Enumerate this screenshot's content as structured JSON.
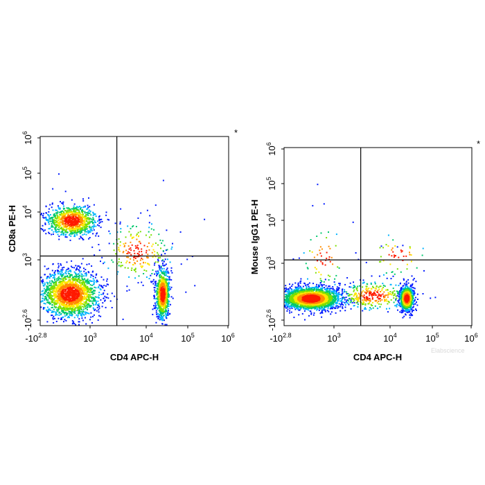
{
  "chart_data": [
    {
      "type": "scatter",
      "subtype": "flow-cytometry-density-dot-plot",
      "xlabel": "CD4 APC-H",
      "ylabel": "CD8a PE-H",
      "x_ticks": [
        {
          "base": "-10",
          "exp": "2.8",
          "value": -631
        },
        {
          "base": "10",
          "exp": "3",
          "value": 1000
        },
        {
          "base": "10",
          "exp": "4",
          "value": 10000
        },
        {
          "base": "10",
          "exp": "5",
          "value": 100000
        },
        {
          "base": "10",
          "exp": "6",
          "value": 1000000
        }
      ],
      "y_ticks": [
        {
          "base": "-10",
          "exp": "2.6",
          "value": -398
        },
        {
          "base": "10",
          "exp": "3",
          "value": 1000
        },
        {
          "base": "10",
          "exp": "4",
          "value": 10000
        },
        {
          "base": "10",
          "exp": "5",
          "value": 100000
        },
        {
          "base": "10",
          "exp": "6",
          "value": 1000000
        }
      ],
      "x_scale": "biexponential",
      "y_scale": "biexponential",
      "quadrant_gate": {
        "x": 3000,
        "y": 1200
      },
      "marker": "*",
      "populations": [
        {
          "x": 450,
          "y": 6500,
          "x_spread": 0.22,
          "y_spread": 0.16,
          "count": 1000
        },
        {
          "x": 400,
          "y": 200,
          "x_spread": 0.26,
          "y_spread": 0.24,
          "count": 1900
        },
        {
          "x": 25000,
          "y": 210,
          "x_spread": 0.06,
          "y_spread": 0.26,
          "count": 850
        },
        {
          "x": 7000,
          "y": 1500,
          "x_spread": 0.3,
          "y_spread": 0.3,
          "count": 220
        }
      ],
      "sparse_points": [
        [
          60,
          95000
        ],
        [
          1300,
          3500
        ],
        [
          26000,
          65000
        ],
        [
          8000,
          9500
        ],
        [
          3500,
          12000
        ],
        [
          12000,
          6000
        ],
        [
          17000,
          15000
        ],
        [
          2200,
          2200
        ],
        [
          42000,
          700
        ],
        [
          70000,
          900
        ],
        [
          260000,
          7000
        ],
        [
          90000,
          250
        ],
        [
          150000,
          400
        ],
        [
          1600,
          600
        ],
        [
          5000,
          300
        ]
      ]
    },
    {
      "type": "scatter",
      "subtype": "flow-cytometry-density-dot-plot",
      "xlabel": "CD4 APC-H",
      "ylabel": "Mouse IgG1 PE-H",
      "x_ticks": [
        {
          "base": "-10",
          "exp": "2.8",
          "value": -631
        },
        {
          "base": "10",
          "exp": "3",
          "value": 1000
        },
        {
          "base": "10",
          "exp": "4",
          "value": 10000
        },
        {
          "base": "10",
          "exp": "5",
          "value": 100000
        },
        {
          "base": "10",
          "exp": "6",
          "value": 1000000
        }
      ],
      "y_ticks": [
        {
          "base": "-10",
          "exp": "2.6",
          "value": -398
        },
        {
          "base": "10",
          "exp": "3",
          "value": 1000
        },
        {
          "base": "10",
          "exp": "4",
          "value": 10000
        },
        {
          "base": "10",
          "exp": "5",
          "value": 100000
        },
        {
          "base": "10",
          "exp": "6",
          "value": 1000000
        }
      ],
      "x_scale": "biexponential",
      "y_scale": "biexponential",
      "quadrant_gate": {
        "x": 3000,
        "y": 1200
      },
      "marker": "*",
      "populations": [
        {
          "x": 300,
          "y": 130,
          "x_spread": 0.26,
          "y_spread": 0.13,
          "count": 2400
        },
        {
          "x": 25000,
          "y": 130,
          "x_spread": 0.06,
          "y_spread": 0.14,
          "count": 950
        },
        {
          "x": 5000,
          "y": 200,
          "x_spread": 0.3,
          "y_spread": 0.16,
          "count": 320
        },
        {
          "x": 700,
          "y": 1300,
          "x_spread": 0.2,
          "y_spread": 0.35,
          "count": 60
        },
        {
          "x": 15000,
          "y": 1500,
          "x_spread": 0.25,
          "y_spread": 0.25,
          "count": 50
        }
      ],
      "sparse_points": [
        [
          500,
          95000
        ],
        [
          350,
          25000
        ],
        [
          700,
          28000
        ],
        [
          2200,
          9000
        ],
        [
          7000,
          2500
        ],
        [
          15000,
          2400
        ],
        [
          20000,
          2600
        ],
        [
          90000,
          140
        ],
        [
          120000,
          160
        ],
        [
          60000,
          250
        ]
      ]
    }
  ],
  "watermark": "Elabscience"
}
